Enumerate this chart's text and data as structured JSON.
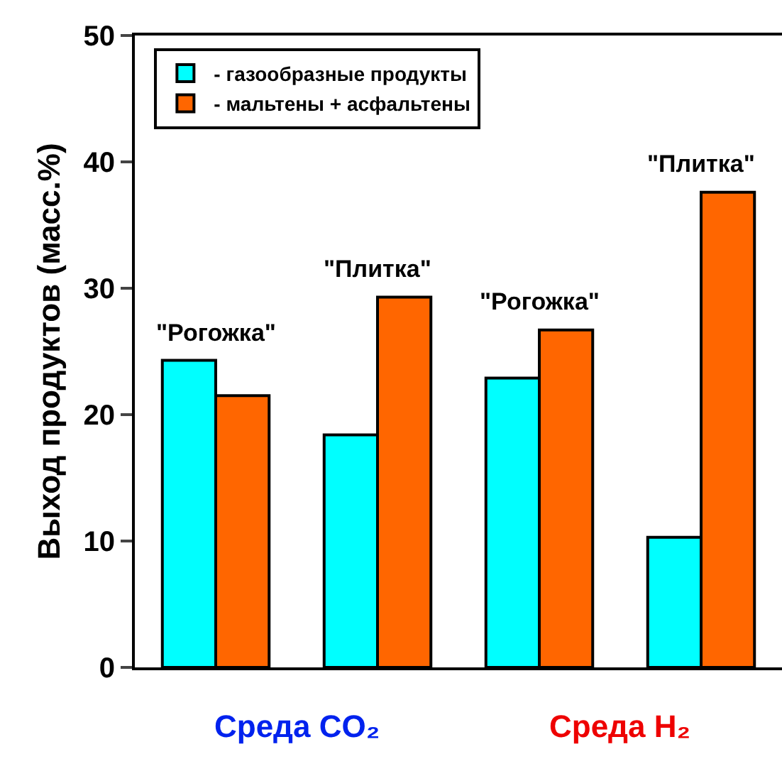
{
  "chart_data": {
    "type": "bar",
    "ylabel": "Выход продуктов (масс.%)",
    "categories": [
      "\"Рогожка\"",
      "\"Плитка\"",
      "\"Рогожка\"",
      "\"Плитка\""
    ],
    "series": [
      {
        "name": "- газообразные продукты",
        "color": "#00ffff",
        "values": [
          24.3,
          18.4,
          22.9,
          10.3
        ]
      },
      {
        "name": "- мальтены + асфальтены",
        "color": "#ff6600",
        "values": [
          21.5,
          29.3,
          26.7,
          37.6
        ]
      }
    ],
    "ylim": [
      0,
      50
    ],
    "yticks": [
      0,
      10,
      20,
      30,
      40,
      50
    ],
    "legend": "top left",
    "annotations": [
      "Среда CO₂",
      "Среда H₂"
    ]
  }
}
